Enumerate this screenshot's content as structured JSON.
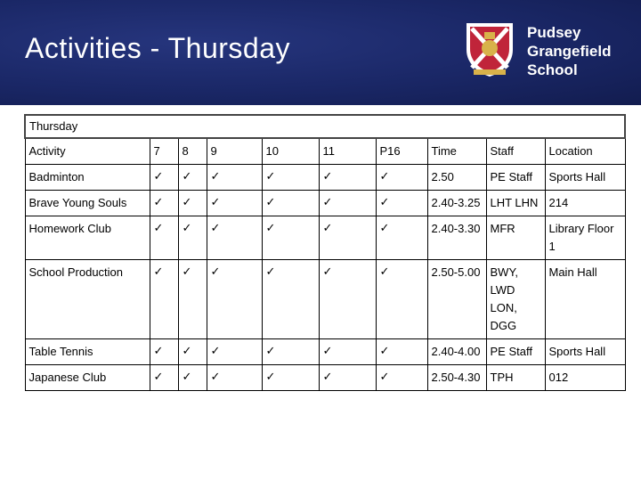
{
  "page": {
    "title": "Activities - Thursday",
    "school_name": [
      "Pudsey",
      "Grangefield",
      "School"
    ]
  },
  "table": {
    "caption": "Thursday",
    "headers": [
      "Activity",
      "7",
      "8",
      "9",
      "10",
      "11",
      "P16",
      "Time",
      "Staff",
      "Location"
    ],
    "tick_glyph": "✓",
    "rows": [
      {
        "activity": "Badminton",
        "ticks": [
          true,
          true,
          true,
          true,
          true,
          true
        ],
        "time": "2.50",
        "staff": "PE Staff",
        "location": "Sports Hall"
      },
      {
        "activity": "Brave Young Souls",
        "ticks": [
          true,
          true,
          true,
          true,
          true,
          true
        ],
        "time": "2.40-3.25",
        "staff": "LHT LHN",
        "location": "214"
      },
      {
        "activity": "Homework Club",
        "ticks": [
          true,
          true,
          true,
          true,
          true,
          true
        ],
        "time": "2.40-3.30",
        "staff": "MFR",
        "location": "Library Floor 1"
      },
      {
        "activity": "School Production",
        "ticks": [
          true,
          true,
          true,
          true,
          true,
          true
        ],
        "time": "2.50-5.00",
        "staff": "BWY, LWD LON, DGG",
        "location": "Main Hall"
      },
      {
        "activity": "Table Tennis",
        "ticks": [
          true,
          true,
          true,
          true,
          true,
          true
        ],
        "time": "2.40-4.00",
        "staff": "PE Staff",
        "location": "Sports Hall"
      },
      {
        "activity": "Japanese Club",
        "ticks": [
          true,
          true,
          true,
          true,
          true,
          true
        ],
        "time": "2.50-4.30",
        "staff": "TPH",
        "location": "012"
      }
    ]
  },
  "colors": {
    "header_bg": "#1a2766",
    "crest_red": "#c0243a",
    "crest_gold": "#d8b24a"
  }
}
